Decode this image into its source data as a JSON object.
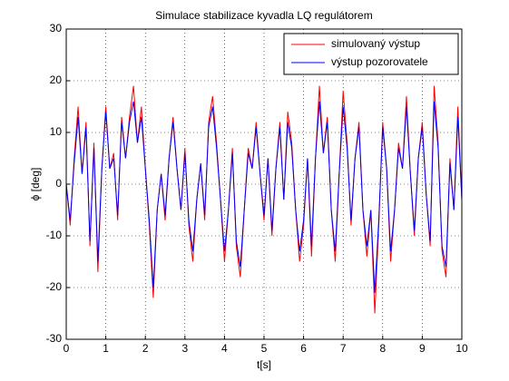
{
  "chart_data": {
    "type": "line",
    "title": "Simulace stabilizace kyvadla LQ regulátorem",
    "x_label": "t[s]",
    "y_label": "ϕ [deg]",
    "x": [
      0,
      0.1,
      0.2,
      0.3,
      0.4,
      0.5,
      0.6,
      0.7,
      0.8,
      0.9,
      1,
      1.1,
      1.2,
      1.3,
      1.4,
      1.5,
      1.6,
      1.7,
      1.8,
      1.9,
      2,
      2.1,
      2.2,
      2.3,
      2.4,
      2.5,
      2.6,
      2.7,
      2.8,
      2.9,
      3,
      3.1,
      3.2,
      3.3,
      3.4,
      3.5,
      3.6,
      3.7,
      3.8,
      3.9,
      4,
      4.1,
      4.2,
      4.3,
      4.4,
      4.5,
      4.6,
      4.7,
      4.8,
      4.9,
      5,
      5.1,
      5.2,
      5.3,
      5.4,
      5.5,
      5.6,
      5.7,
      5.8,
      5.9,
      6,
      6.1,
      6.2,
      6.3,
      6.4,
      6.5,
      6.6,
      6.7,
      6.8,
      6.9,
      7,
      7.1,
      7.2,
      7.3,
      7.4,
      7.5,
      7.6,
      7.7,
      7.8,
      7.9,
      8,
      8.1,
      8.2,
      8.3,
      8.4,
      8.5,
      8.6,
      8.7,
      8.8,
      8.9,
      9,
      9.1,
      9.2,
      9.3,
      9.4,
      9.5,
      9.6,
      9.7,
      9.8,
      9.9,
      10
    ],
    "series": [
      {
        "name": "simulovaný výstup",
        "color": "#ff0000",
        "values": [
          0,
          -8,
          5,
          15,
          2,
          12,
          -12,
          8,
          -17,
          3,
          15,
          3,
          6,
          -7,
          13,
          5,
          13,
          19,
          8,
          15,
          3,
          -8,
          -22,
          -5,
          2,
          -7,
          5,
          13,
          3,
          -5,
          7,
          -8,
          -15,
          -3,
          4,
          -7,
          12,
          17,
          8,
          -3,
          -15,
          -5,
          7,
          -12,
          -18,
          -5,
          7,
          3,
          12,
          2,
          -7,
          5,
          -10,
          3,
          12,
          -3,
          14,
          8,
          -5,
          -15,
          -8,
          5,
          -14,
          5,
          19,
          6,
          13,
          -5,
          -15,
          2,
          18,
          8,
          -8,
          5,
          12,
          -5,
          -14,
          -5,
          -25,
          -8,
          12,
          3,
          -15,
          -5,
          8,
          3,
          17,
          2,
          -10,
          5,
          12,
          -2,
          -12,
          19,
          8,
          -13,
          -18,
          5,
          -5,
          15,
          -3
        ]
      },
      {
        "name": "výstup pozorovatele",
        "color": "#0000ff",
        "values": [
          0,
          -7,
          4,
          13,
          2,
          11,
          -11,
          7,
          -15,
          3,
          14,
          3,
          5,
          -6,
          12,
          5,
          12,
          16,
          8,
          13,
          3,
          -7,
          -20,
          -5,
          2,
          -6,
          5,
          12,
          3,
          -5,
          6,
          -7,
          -13,
          -3,
          4,
          -6,
          11,
          15,
          7,
          -3,
          -13,
          -5,
          6,
          -11,
          -16,
          -5,
          6,
          3,
          11,
          2,
          -6,
          5,
          -9,
          3,
          11,
          -3,
          12,
          7,
          -5,
          -13,
          -7,
          5,
          -12,
          5,
          16,
          6,
          12,
          -5,
          -13,
          2,
          15,
          7,
          -7,
          5,
          11,
          -5,
          -12,
          -5,
          -21,
          -7,
          11,
          3,
          -13,
          -5,
          7,
          3,
          15,
          2,
          -9,
          5,
          11,
          -2,
          -11,
          16,
          7,
          -12,
          -16,
          4,
          -5,
          13,
          -3
        ]
      }
    ],
    "xlim": [
      0,
      10
    ],
    "xticks": [
      0,
      1,
      2,
      3,
      4,
      5,
      6,
      7,
      8,
      9,
      10
    ],
    "ylim": [
      -30,
      30
    ],
    "yticks": [
      -30,
      -20,
      -10,
      0,
      10,
      20,
      30
    ],
    "grid": true,
    "legend": "top-right"
  }
}
